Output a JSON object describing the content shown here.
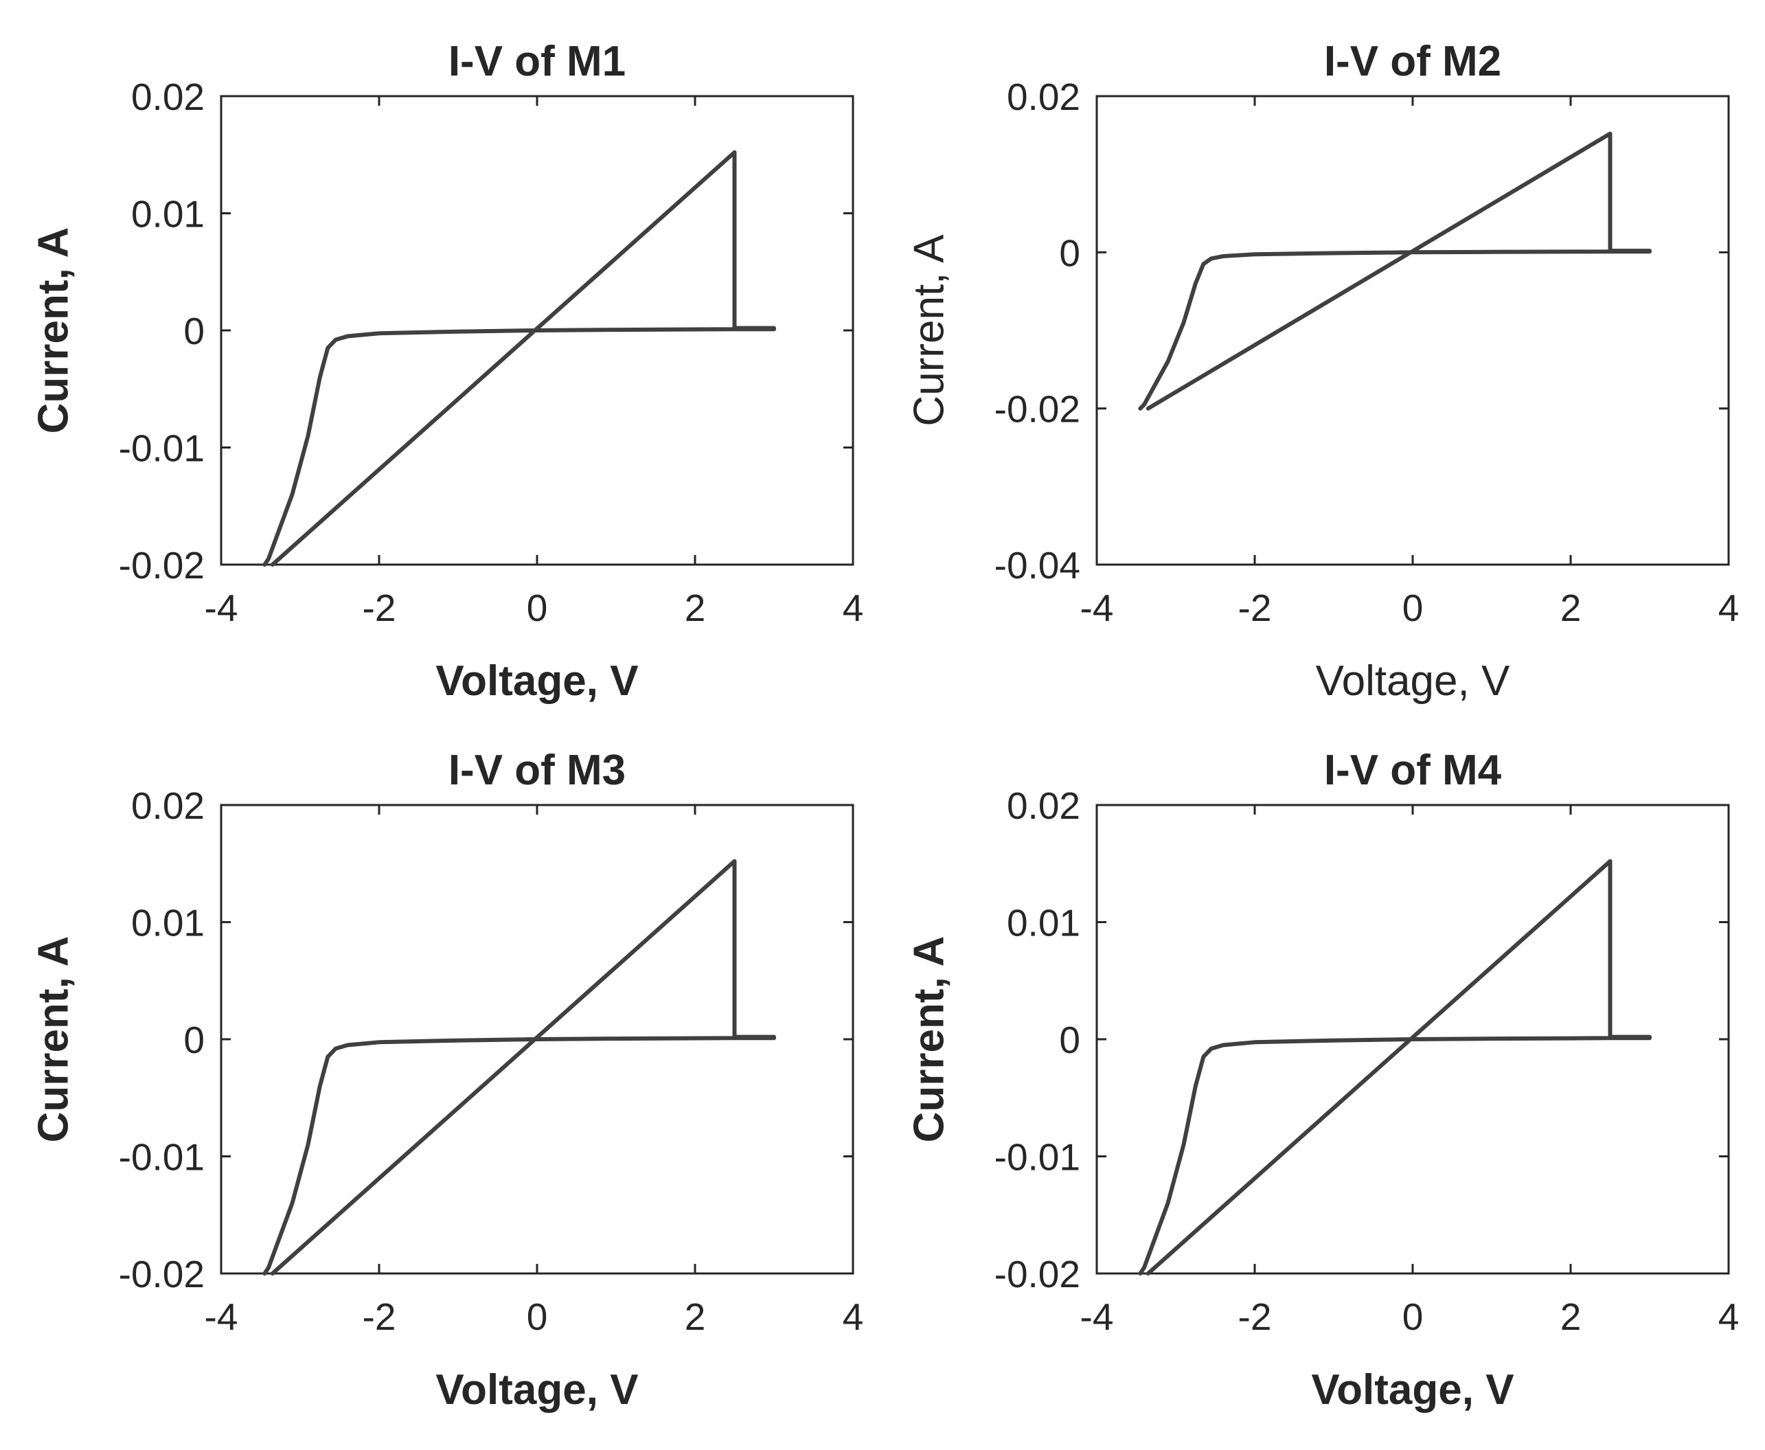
{
  "chart_data": [
    {
      "type": "line",
      "title": "I-V of M1",
      "xlabel": "Voltage, V",
      "ylabel": "Current, A",
      "xlabel_bold": true,
      "ylabel_bold": true,
      "xlim": [
        -4,
        4
      ],
      "ylim": [
        -0.02,
        0.02
      ],
      "xticks": [
        -4,
        -2,
        0,
        2,
        4
      ],
      "yticks": [
        -0.02,
        -0.01,
        0,
        0.01,
        0.02
      ],
      "xtick_labels": [
        "-4",
        "-2",
        "0",
        "2",
        "4"
      ],
      "ytick_labels": [
        "-0.02",
        "-0.01",
        "0",
        "0.01",
        "0.02"
      ],
      "series": [
        {
          "name": "I-V",
          "color": "#404040",
          "x": [
            -3.35,
            2.5,
            2.5,
            2.5,
            3.0,
            3.0,
            2.5,
            1.0,
            0.0,
            -1.0,
            -2.0,
            -2.4,
            -2.55,
            -2.65,
            -2.75,
            -2.9,
            -3.1,
            -3.4,
            -3.45
          ],
          "y": [
            -0.02,
            0.0152,
            0.0148,
            0.0002,
            0.0002,
            0.0001,
            0.0001,
            5e-05,
            0.0,
            -0.0001,
            -0.00025,
            -0.0005,
            -0.0008,
            -0.0015,
            -0.004,
            -0.009,
            -0.014,
            -0.0195,
            -0.02
          ]
        }
      ]
    },
    {
      "type": "line",
      "title": "I-V of M2",
      "xlabel": "Voltage, V",
      "ylabel": "Current, A",
      "xlabel_bold": false,
      "ylabel_bold": false,
      "xlim": [
        -4,
        4
      ],
      "ylim": [
        -0.04,
        0.02
      ],
      "xticks": [
        -4,
        -2,
        0,
        2,
        4
      ],
      "yticks": [
        -0.04,
        -0.02,
        0,
        0.02
      ],
      "xtick_labels": [
        "-4",
        "-2",
        "0",
        "2",
        "4"
      ],
      "ytick_labels": [
        "-0.04",
        "-0.02",
        "0",
        "0.02"
      ],
      "series": [
        {
          "name": "I-V",
          "color": "#404040",
          "x": [
            -3.35,
            2.5,
            2.5,
            2.5,
            3.0,
            3.0,
            2.5,
            1.0,
            0.0,
            -1.0,
            -2.0,
            -2.4,
            -2.55,
            -2.65,
            -2.75,
            -2.9,
            -3.1,
            -3.4,
            -3.45
          ],
          "y": [
            -0.02,
            0.0152,
            0.0148,
            0.0002,
            0.0002,
            0.0001,
            0.0001,
            5e-05,
            0.0,
            -0.0001,
            -0.00025,
            -0.0005,
            -0.0008,
            -0.0015,
            -0.004,
            -0.009,
            -0.014,
            -0.0195,
            -0.02
          ]
        }
      ]
    },
    {
      "type": "line",
      "title": "I-V of M3",
      "xlabel": "Voltage, V",
      "ylabel": "Current, A",
      "xlabel_bold": true,
      "ylabel_bold": true,
      "xlim": [
        -4,
        4
      ],
      "ylim": [
        -0.02,
        0.02
      ],
      "xticks": [
        -4,
        -2,
        0,
        2,
        4
      ],
      "yticks": [
        -0.02,
        -0.01,
        0,
        0.01,
        0.02
      ],
      "xtick_labels": [
        "-4",
        "-2",
        "0",
        "2",
        "4"
      ],
      "ytick_labels": [
        "-0.02",
        "-0.01",
        "0",
        "0.01",
        "0.02"
      ],
      "series": [
        {
          "name": "I-V",
          "color": "#404040",
          "x": [
            -3.35,
            2.5,
            2.5,
            2.5,
            3.0,
            3.0,
            2.5,
            1.0,
            0.0,
            -1.0,
            -2.0,
            -2.4,
            -2.55,
            -2.65,
            -2.75,
            -2.9,
            -3.1,
            -3.4,
            -3.45
          ],
          "y": [
            -0.02,
            0.0152,
            0.0148,
            0.0002,
            0.0002,
            0.0001,
            0.0001,
            5e-05,
            0.0,
            -0.0001,
            -0.00025,
            -0.0005,
            -0.0008,
            -0.0015,
            -0.004,
            -0.009,
            -0.014,
            -0.0195,
            -0.02
          ]
        }
      ]
    },
    {
      "type": "line",
      "title": "I-V of M4",
      "xlabel": "Voltage, V",
      "ylabel": "Current, A",
      "xlabel_bold": true,
      "ylabel_bold": true,
      "xlim": [
        -4,
        4
      ],
      "ylim": [
        -0.02,
        0.02
      ],
      "xticks": [
        -4,
        -2,
        0,
        2,
        4
      ],
      "yticks": [
        -0.02,
        -0.01,
        0,
        0.01,
        0.02
      ],
      "xtick_labels": [
        "-4",
        "-2",
        "0",
        "2",
        "4"
      ],
      "ytick_labels": [
        "-0.02",
        "-0.01",
        "0",
        "0.01",
        "0.02"
      ],
      "series": [
        {
          "name": "I-V",
          "color": "#404040",
          "x": [
            -3.35,
            2.5,
            2.5,
            2.5,
            3.0,
            3.0,
            2.5,
            1.0,
            0.0,
            -1.0,
            -2.0,
            -2.4,
            -2.55,
            -2.65,
            -2.75,
            -2.9,
            -3.1,
            -3.4,
            -3.45
          ],
          "y": [
            -0.02,
            0.0152,
            0.0148,
            0.0002,
            0.0002,
            0.0001,
            0.0001,
            5e-05,
            0.0,
            -0.0001,
            -0.00025,
            -0.0005,
            -0.0008,
            -0.0015,
            -0.004,
            -0.009,
            -0.014,
            -0.0195,
            -0.02
          ]
        }
      ]
    }
  ]
}
